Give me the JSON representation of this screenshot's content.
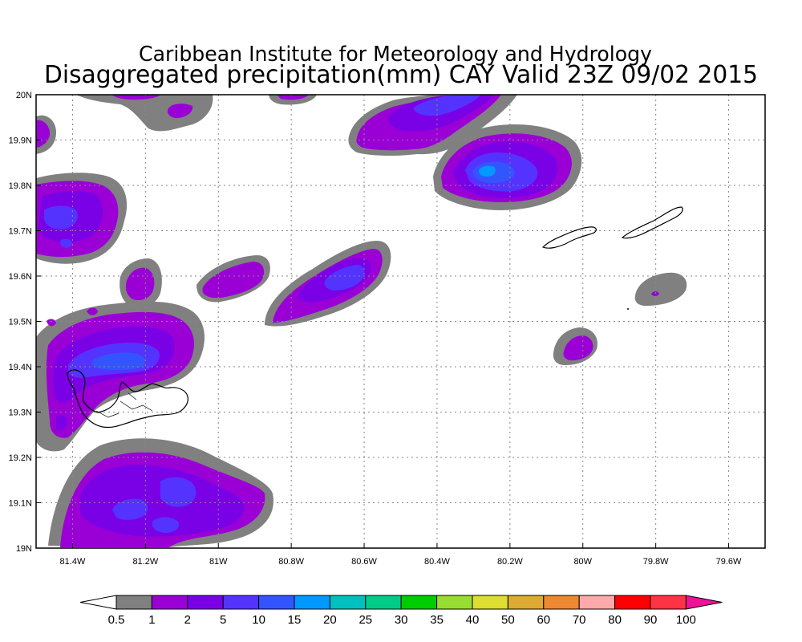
{
  "title": {
    "line1": "Caribbean Institute for Meteorology and Hydrology",
    "line2": "Disaggregated precipitation(mm) CAY Valid 23Z 09/02 2015"
  },
  "map": {
    "lon_range": [
      -81.5,
      -79.5
    ],
    "lat_range": [
      19.0,
      20.0
    ],
    "x_ticks": [
      {
        "value": -81.4,
        "label": "81.4W"
      },
      {
        "value": -81.2,
        "label": "81.2W"
      },
      {
        "value": -81.0,
        "label": "81W"
      },
      {
        "value": -80.8,
        "label": "80.8W"
      },
      {
        "value": -80.6,
        "label": "80.6W"
      },
      {
        "value": -80.4,
        "label": "80.4W"
      },
      {
        "value": -80.2,
        "label": "80.2W"
      },
      {
        "value": -80.0,
        "label": "80W"
      },
      {
        "value": -79.8,
        "label": "79.8W"
      },
      {
        "value": -79.6,
        "label": "79.6W"
      }
    ],
    "y_ticks": [
      {
        "value": 19.0,
        "label": "19N"
      },
      {
        "value": 19.1,
        "label": "19.1N"
      },
      {
        "value": 19.2,
        "label": "19.2N"
      },
      {
        "value": 19.3,
        "label": "19.3N"
      },
      {
        "value": 19.4,
        "label": "19.4N"
      },
      {
        "value": 19.5,
        "label": "19.5N"
      },
      {
        "value": 19.6,
        "label": "19.6N"
      },
      {
        "value": 19.7,
        "label": "19.7N"
      },
      {
        "value": 19.8,
        "label": "19.8N"
      },
      {
        "value": 19.9,
        "label": "19.9N"
      },
      {
        "value": 20.0,
        "label": "20N"
      }
    ],
    "grid": true
  },
  "legend": {
    "colors": [
      "#808080",
      "#9a00d6",
      "#7a00e6",
      "#5533ff",
      "#3355ff",
      "#0099ff",
      "#00c0c0",
      "#00cc88",
      "#00cc00",
      "#99dd33",
      "#dddd33",
      "#ddaa33",
      "#ee8833",
      "#ffaaaa",
      "#ff0000",
      "#ff3344"
    ],
    "end_color": "#ee1199",
    "labels": [
      "0.5",
      "1",
      "2",
      "5",
      "10",
      "15",
      "20",
      "25",
      "30",
      "35",
      "40",
      "50",
      "60",
      "70",
      "80",
      "90",
      "100"
    ]
  },
  "colors": {
    "gray": "#808080",
    "purple": "#9a00d6",
    "violet": "#7a00e6",
    "blue": "#5533ff",
    "blue2": "#3355ff",
    "cyan": "#0099ff"
  }
}
